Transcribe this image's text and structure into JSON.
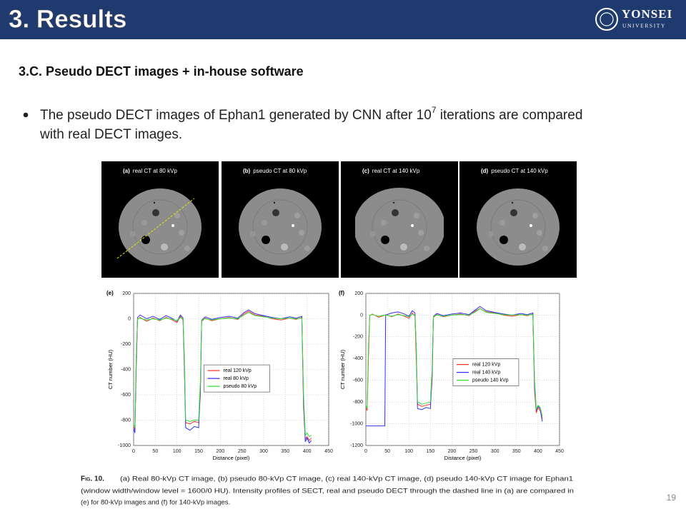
{
  "header": {
    "title": "3. Results",
    "logo_name": "YONSEI",
    "logo_sub": "UNIVERSITY"
  },
  "subtitle": "3.C. Pseudo DECT images + in-house software",
  "bullet": {
    "before": "The pseudo DECT images of Ephan1 generated by CNN after 10",
    "sup": "7",
    "after": " iterations are compared",
    "line2": "with real DECT images."
  },
  "images": [
    {
      "tag": "(a)",
      "label": "real CT at 80 kVp"
    },
    {
      "tag": "(b)",
      "label": "pseudo CT at 80 kVp"
    },
    {
      "tag": "(c)",
      "label": "real CT at 140 kVp"
    },
    {
      "tag": "(d)",
      "label": "pseudo CT at 140 kVp"
    }
  ],
  "chart_data": [
    {
      "type": "line",
      "label": "(e)",
      "xlabel": "Distance (pixel)",
      "ylabel": "CT number (HU)",
      "xlim": [
        0,
        450
      ],
      "xticks": [
        0,
        50,
        100,
        150,
        200,
        250,
        300,
        350,
        400,
        450
      ],
      "ylim": [
        -1000,
        200
      ],
      "yticks": [
        -1000,
        -800,
        -600,
        -400,
        -200,
        0,
        200
      ],
      "grid": true,
      "legend": "center",
      "x": [
        0,
        3,
        6,
        9,
        15,
        30,
        45,
        60,
        75,
        90,
        100,
        108,
        114,
        117,
        120,
        130,
        140,
        150,
        154,
        157,
        165,
        180,
        200,
        220,
        240,
        255,
        265,
        280,
        300,
        320,
        340,
        360,
        375,
        388,
        392,
        396,
        400,
        405,
        410
      ],
      "series": [
        {
          "name": "real 120 kVp",
          "color": "#ff3030",
          "values": [
            -850,
            -880,
            -400,
            -5,
            10,
            -20,
            5,
            -15,
            10,
            -10,
            -30,
            20,
            -10,
            -400,
            -820,
            -830,
            -810,
            -820,
            -600,
            -20,
            5,
            -15,
            0,
            10,
            -5,
            40,
            60,
            30,
            20,
            0,
            -10,
            5,
            -5,
            10,
            -700,
            -950,
            -930,
            -960,
            -940
          ]
        },
        {
          "name": "real 80 kVp",
          "color": "#3030ff",
          "values": [
            -870,
            -900,
            -350,
            10,
            30,
            0,
            20,
            -5,
            25,
            0,
            -20,
            30,
            5,
            -350,
            -860,
            -880,
            -850,
            -860,
            -550,
            -10,
            15,
            -5,
            10,
            20,
            5,
            50,
            70,
            40,
            25,
            10,
            0,
            15,
            5,
            20,
            -650,
            -970,
            -940,
            -980,
            -960
          ]
        },
        {
          "name": "pseudo 80 kVp",
          "color": "#30e030",
          "values": [
            -830,
            -860,
            -300,
            0,
            5,
            -10,
            0,
            -10,
            5,
            -5,
            -15,
            10,
            0,
            -300,
            -800,
            -810,
            -800,
            -800,
            -500,
            -10,
            0,
            -10,
            0,
            5,
            0,
            30,
            50,
            25,
            15,
            5,
            0,
            5,
            0,
            5,
            -600,
            -920,
            -900,
            -930,
            -920
          ]
        }
      ]
    },
    {
      "type": "line",
      "label": "(f)",
      "xlabel": "Distance (pixel)",
      "ylabel": "CT number (HU)",
      "xlim": [
        0,
        450
      ],
      "xticks": [
        0,
        50,
        100,
        150,
        200,
        250,
        300,
        350,
        400,
        450
      ],
      "ylim": [
        -1200,
        200
      ],
      "yticks": [
        -1200,
        -1000,
        -800,
        -600,
        -400,
        -200,
        0,
        200
      ],
      "grid": true,
      "legend": "center-right",
      "x": [
        0,
        3,
        6,
        9,
        15,
        30,
        44,
        46,
        60,
        75,
        90,
        100,
        108,
        114,
        117,
        120,
        130,
        140,
        150,
        154,
        157,
        165,
        180,
        200,
        220,
        240,
        255,
        265,
        280,
        300,
        320,
        340,
        360,
        375,
        388,
        392,
        396,
        400,
        405,
        410
      ],
      "series": [
        {
          "name": "real 120 kVp",
          "color": "#ff3030",
          "values": [
            -850,
            -880,
            -400,
            -5,
            10,
            -20,
            0,
            5,
            -15,
            10,
            -10,
            -30,
            20,
            -10,
            -400,
            -820,
            -840,
            -830,
            -820,
            -600,
            -20,
            5,
            -15,
            0,
            10,
            -5,
            40,
            60,
            30,
            20,
            0,
            -10,
            5,
            -5,
            10,
            -700,
            -900,
            -850,
            -880,
            -950
          ]
        },
        {
          "name": "real 140 kVp",
          "color": "#3030ff",
          "values": [
            -1020,
            -1020,
            -1020,
            -1020,
            -1020,
            -1020,
            -1020,
            0,
            20,
            30,
            10,
            -10,
            40,
            20,
            -300,
            -860,
            -870,
            -850,
            -860,
            -550,
            -10,
            15,
            -5,
            10,
            20,
            5,
            50,
            80,
            40,
            25,
            10,
            0,
            15,
            5,
            20,
            -650,
            -880,
            -840,
            -860,
            -980
          ]
        },
        {
          "name": "pseudo 140 kVp",
          "color": "#30e030",
          "values": [
            -830,
            -860,
            -300,
            0,
            5,
            -10,
            0,
            0,
            -10,
            5,
            -5,
            -15,
            10,
            0,
            -300,
            -800,
            -820,
            -810,
            -800,
            -500,
            -10,
            0,
            -10,
            0,
            5,
            0,
            30,
            60,
            25,
            15,
            5,
            0,
            5,
            0,
            5,
            -600,
            -870,
            -830,
            -850,
            -930
          ]
        }
      ]
    }
  ],
  "caption": {
    "label": "Fig. 10.",
    "lines": [
      "(a) Real 80-kVp CT image, (b) pseudo 80-kVp CT image, (c) real 140-kVp CT image, (d) pseudo 140-kVp CT image for Ephan1",
      "(window width/window level = 1600/0 HU). Intensity profiles of SECT, real and pseudo DECT through the dashed line in (a) are compared in",
      "(e) for 80-kVp images and (f) for 140-kVp images."
    ]
  },
  "page_number": "19"
}
